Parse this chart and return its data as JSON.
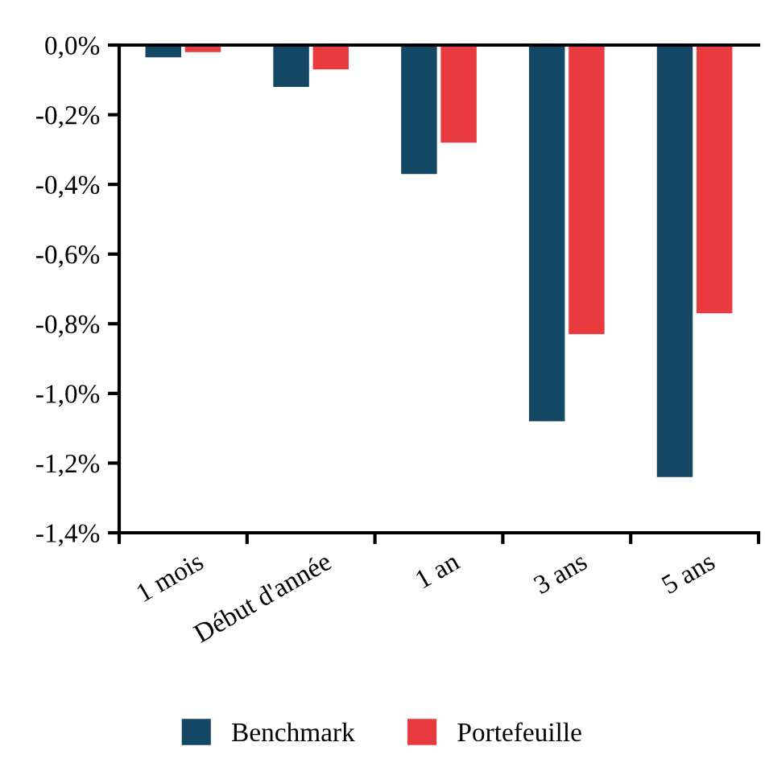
{
  "chart_data": {
    "type": "bar",
    "categories": [
      "1 mois",
      "Début d'année",
      "1 an",
      "3 ans",
      "5 ans"
    ],
    "series": [
      {
        "name": "Benchmark",
        "color": "#134763",
        "values": [
          -0.035,
          -0.12,
          -0.37,
          -1.08,
          -1.24
        ]
      },
      {
        "name": "Portefeuille",
        "color": "#e83a3f",
        "values": [
          -0.02,
          -0.07,
          -0.28,
          -0.83,
          -0.77
        ]
      }
    ],
    "ylim": [
      -1.4,
      0
    ],
    "yticks": [
      {
        "value": 0,
        "label": "0,0%"
      },
      {
        "value": -0.2,
        "label": "-0,2%"
      },
      {
        "value": -0.4,
        "label": "-0,4%"
      },
      {
        "value": -0.6,
        "label": "-0,6%"
      },
      {
        "value": -0.8,
        "label": "-0,8%"
      },
      {
        "value": -1.0,
        "label": "-1,0%"
      },
      {
        "value": -1.2,
        "label": "-1,2%"
      },
      {
        "value": -1.4,
        "label": "-1,4%"
      }
    ],
    "grid": false,
    "legend": "bottom"
  }
}
